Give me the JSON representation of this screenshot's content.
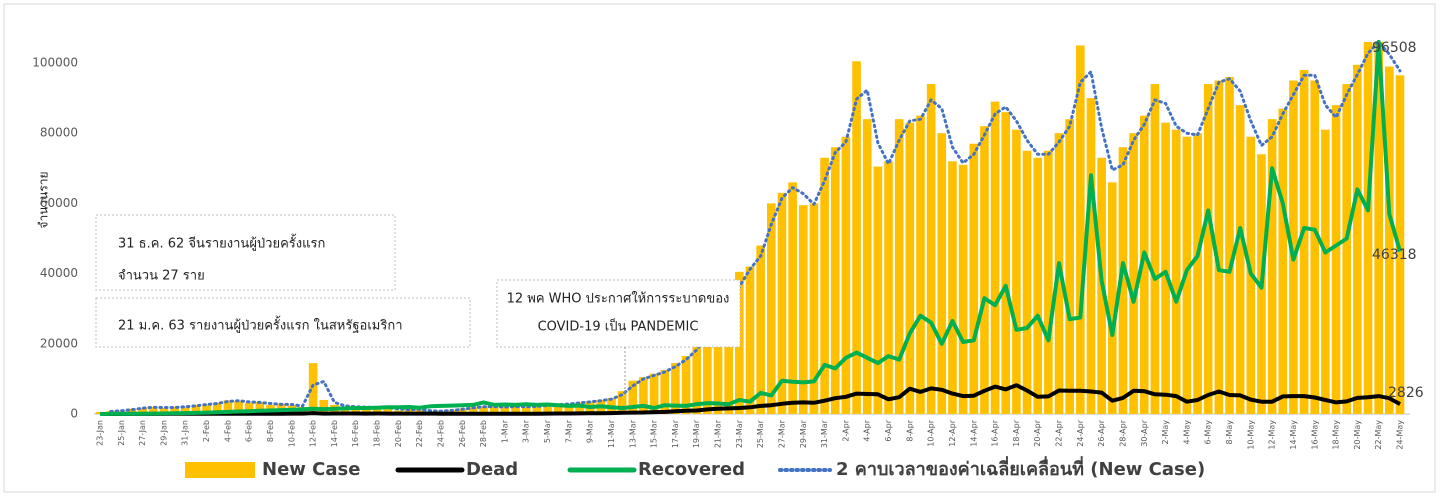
{
  "chart_data": {
    "type": "combo",
    "y_label": "จำนวนราย",
    "categories": [
      "23-Jan",
      null,
      "25-Jan",
      null,
      "27-Jan",
      null,
      "29-Jan",
      null,
      "31-Jan",
      null,
      "2-Feb",
      null,
      "4-Feb",
      null,
      "6-Feb",
      null,
      "8-Feb",
      null,
      "10-Feb",
      null,
      "12-Feb",
      null,
      "14-Feb",
      null,
      "16-Feb",
      null,
      "18-Feb",
      null,
      "20-Feb",
      null,
      "22-Feb",
      null,
      "24-Feb",
      null,
      "26-Feb",
      null,
      "28-Feb",
      null,
      "1-Mar",
      null,
      "3-Mar",
      null,
      "5-Mar",
      null,
      "7-Mar",
      null,
      "9-Mar",
      null,
      "11-Mar",
      null,
      "13-Mar",
      null,
      "15-Mar",
      null,
      "17-Mar",
      null,
      "19-Mar",
      null,
      "21-Mar",
      null,
      "23-Mar",
      null,
      "25-Mar",
      null,
      "27-Mar",
      null,
      "29-Mar",
      null,
      "31-Mar",
      null,
      "2-Apr",
      null,
      "4-Apr",
      null,
      "6-Apr",
      null,
      "8-Apr",
      null,
      "10-Apr",
      null,
      "12-Apr",
      null,
      "14-Apr",
      null,
      "16-Apr",
      null,
      "18-Apr",
      null,
      "20-Apr",
      null,
      "22-Apr",
      null,
      "24-Apr",
      null,
      "26-Apr",
      null,
      "28-Apr",
      null,
      "30-Apr",
      null,
      "2-May",
      null,
      "4-May",
      null,
      "6-May",
      null,
      "8-May",
      null,
      "10-May",
      null,
      "12-May",
      null,
      "14-May",
      null,
      "16-May",
      null,
      "18-May",
      null,
      "20-May",
      null,
      "22-May",
      null,
      "24-May"
    ],
    "series": [
      {
        "name": "New Case",
        "kind": "bar",
        "color": "#FFC000",
        "values": [
          600,
          800,
          1000,
          1500,
          1800,
          2000,
          1700,
          2000,
          2100,
          2600,
          2800,
          3200,
          3900,
          3700,
          3200,
          3400,
          2600,
          2900,
          2500,
          2000,
          14500,
          4000,
          2600,
          2100,
          2000,
          1900,
          1800,
          1900,
          1000,
          1500,
          1200,
          700,
          900,
          1100,
          1600,
          1900,
          2200,
          2000,
          2000,
          2200,
          2000,
          2300,
          2600,
          2700,
          3000,
          3300,
          3600,
          4000,
          4500,
          6500,
          9500,
          10500,
          11500,
          12500,
          14500,
          16500,
          20000,
          25000,
          28000,
          32000,
          40500,
          42000,
          48000,
          60000,
          63000,
          66000,
          59500,
          60000,
          73000,
          76000,
          79000,
          100500,
          84000,
          70500,
          72000,
          84000,
          83000,
          85000,
          94000,
          80000,
          72000,
          71000,
          77000,
          82000,
          89000,
          86000,
          81000,
          75000,
          73000,
          75000,
          80000,
          84000,
          105000,
          90000,
          73000,
          66000,
          76000,
          80000,
          85000,
          94000,
          83000,
          81000,
          79000,
          80000,
          94000,
          95000,
          96000,
          88000,
          79000,
          74000,
          84000,
          87000,
          95000,
          98000,
          95000,
          81000,
          88000,
          94000,
          99500,
          106000,
          106000,
          99000,
          96508
        ]
      },
      {
        "name": "Dead",
        "kind": "line",
        "color": "#000000",
        "width": 4,
        "values": [
          0,
          0,
          10,
          20,
          25,
          30,
          40,
          45,
          45,
          50,
          60,
          65,
          70,
          75,
          80,
          85,
          90,
          95,
          100,
          110,
          250,
          120,
          140,
          150,
          140,
          100,
          150,
          100,
          120,
          100,
          110,
          150,
          70,
          80,
          60,
          50,
          50,
          60,
          60,
          70,
          80,
          90,
          100,
          130,
          150,
          170,
          200,
          220,
          270,
          330,
          410,
          420,
          550,
          600,
          800,
          900,
          1000,
          1300,
          1500,
          1600,
          1700,
          1900,
          2300,
          2500,
          2900,
          3200,
          3300,
          3200,
          3800,
          4500,
          4900,
          5800,
          5700,
          5600,
          4200,
          4800,
          7200,
          6300,
          7300,
          6900,
          5800,
          5100,
          5200,
          6600,
          7800,
          7000,
          8200,
          6700,
          4900,
          5000,
          6700,
          6600,
          6600,
          6400,
          6100,
          3800,
          4600,
          6600,
          6500,
          5600,
          5500,
          5100,
          3500,
          4000,
          5400,
          6400,
          5400,
          5300,
          4100,
          3500,
          3500,
          5000,
          5100,
          5100,
          4700,
          4000,
          3300,
          3600,
          4600,
          4800,
          5100,
          4500,
          2826
        ]
      },
      {
        "name": "Recovered",
        "kind": "line",
        "color": "#00B050",
        "width": 4,
        "values": [
          10,
          20,
          30,
          50,
          80,
          100,
          150,
          200,
          250,
          300,
          400,
          500,
          600,
          700,
          800,
          900,
          1000,
          1100,
          1200,
          1300,
          1500,
          1400,
          1500,
          1600,
          1700,
          1700,
          1800,
          1900,
          1900,
          2000,
          1800,
          2200,
          2300,
          2400,
          2500,
          2600,
          3300,
          2600,
          2700,
          2600,
          2800,
          2600,
          2700,
          2500,
          2300,
          2400,
          2000,
          2200,
          1900,
          1700,
          2000,
          2300,
          1700,
          2500,
          2400,
          2300,
          2800,
          3100,
          3000,
          2800,
          4000,
          3500,
          6000,
          5300,
          9500,
          9200,
          9000,
          9300,
          14000,
          13000,
          16000,
          17500,
          16000,
          14500,
          16500,
          15500,
          23000,
          28000,
          26000,
          20000,
          26500,
          20500,
          21000,
          33000,
          31000,
          36500,
          24000,
          24500,
          28000,
          21000,
          43000,
          27000,
          27500,
          68000,
          38000,
          22500,
          43000,
          32000,
          46000,
          38500,
          40500,
          32000,
          41000,
          45000,
          58000,
          41000,
          40500,
          53000,
          40000,
          36000,
          70000,
          60000,
          44000,
          53000,
          52500,
          46000,
          48000,
          50000,
          64000,
          58000,
          106000,
          57000,
          46318
        ]
      },
      {
        "name": "2 คาบเวลาของค่าเฉลี่ยเคลื่อนที่ (New Case)",
        "kind": "dotted",
        "color": "#4472C4",
        "width": 3,
        "values": [
          null,
          700,
          900,
          1250,
          1650,
          1900,
          1850,
          1850,
          2050,
          2350,
          2700,
          3000,
          3550,
          3800,
          3450,
          3300,
          3000,
          2750,
          2700,
          2250,
          8250,
          9250,
          3300,
          2350,
          2050,
          1950,
          1850,
          1850,
          1450,
          1250,
          1350,
          950,
          800,
          1000,
          1350,
          1750,
          2050,
          2100,
          2000,
          2100,
          2100,
          2150,
          2450,
          2650,
          2850,
          3150,
          3450,
          3800,
          4250,
          5500,
          8000,
          10000,
          11000,
          12000,
          13500,
          15500,
          18250,
          22500,
          26500,
          30000,
          36250,
          41250,
          45000,
          54000,
          61500,
          64500,
          62750,
          59750,
          66500,
          74500,
          77500,
          89750,
          92250,
          77250,
          71250,
          78000,
          83500,
          84000,
          89500,
          87000,
          76000,
          71500,
          74000,
          79500,
          85500,
          87500,
          83500,
          78000,
          74000,
          74000,
          77500,
          82000,
          94500,
          97500,
          81500,
          69500,
          71000,
          78000,
          82500,
          89500,
          88500,
          82000,
          80000,
          79500,
          87000,
          94500,
          95500,
          92000,
          83500,
          76500,
          79000,
          85500,
          91000,
          96500,
          96500,
          88000,
          84500,
          91000,
          96750,
          102750,
          106000,
          102500,
          97750
        ]
      }
    ],
    "ylim": [
      0,
      100000
    ],
    "yticks": [
      0,
      20000,
      40000,
      60000,
      80000,
      100000
    ],
    "grid": false,
    "annotations": [
      [
        "31 ธ.ค. 62 จีนรายงานผู้ป่วยครั้งแรก",
        "จำนวน 27 ราย"
      ],
      [
        "21 ม.ค. 63 รายงานผู้ป่วยครั้งแรก ในสหรัฐอเมริกา"
      ],
      [
        "12 พค WHO ประกาศให้การระบาดของ",
        "COVID-19 เป็น PANDEMIC"
      ]
    ]
  }
}
